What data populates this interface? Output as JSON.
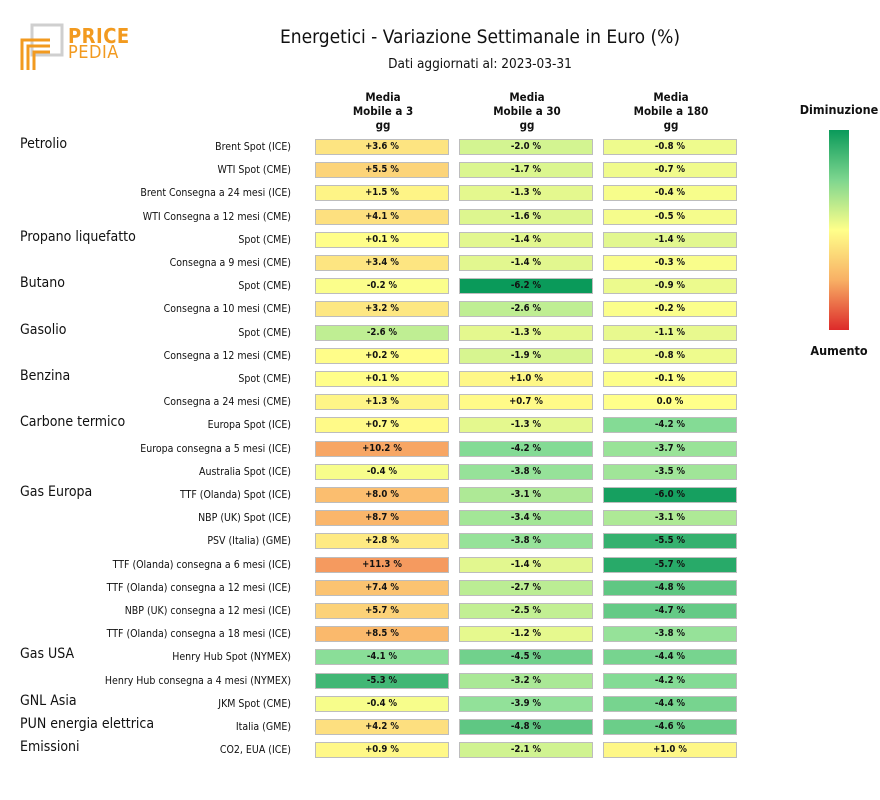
{
  "brand": {
    "line1": "PRICE",
    "line2": "PEDIA",
    "color": "#f29a1f"
  },
  "title": "Energetici - Variazione Settimanale in Euro (%)",
  "subtitle": "Dati aggiornati al: 2023-03-31",
  "columns": [
    "Media\nMobile a 3\ngg",
    "Media\nMobile a 30\ngg",
    "Media\nMobile a 180\ngg"
  ],
  "legend": {
    "top": "Diminuzione",
    "bottom": "Aumento"
  },
  "chart_data": {
    "type": "heatmap",
    "title": "Energetici - Variazione Settimanale in Euro (%)",
    "unit": "%",
    "columns": [
      "Media Mobile a 3 gg",
      "Media Mobile a 30 gg",
      "Media Mobile a 180 gg"
    ],
    "groups": [
      {
        "name": "Petrolio",
        "rows": [
          {
            "label": "Brent Spot (ICE)",
            "values": [
              3.6,
              -2.0,
              -0.8
            ]
          },
          {
            "label": "WTI Spot (CME)",
            "values": [
              5.5,
              -1.7,
              -0.7
            ]
          },
          {
            "label": "Brent Consegna a 24 mesi (ICE)",
            "values": [
              1.5,
              -1.3,
              -0.4
            ]
          },
          {
            "label": "WTI Consegna a 12 mesi (CME)",
            "values": [
              4.1,
              -1.6,
              -0.5
            ]
          }
        ]
      },
      {
        "name": "Propano liquefatto",
        "rows": [
          {
            "label": "Spot (CME)",
            "values": [
              0.1,
              -1.4,
              -1.4
            ]
          },
          {
            "label": "Consegna a 9 mesi (CME)",
            "values": [
              3.4,
              -1.4,
              -0.3
            ]
          }
        ]
      },
      {
        "name": "Butano",
        "rows": [
          {
            "label": "Spot (CME)",
            "values": [
              -0.2,
              -6.2,
              -0.9
            ]
          },
          {
            "label": "Consegna a 10 mesi (CME)",
            "values": [
              3.2,
              -2.6,
              -0.2
            ]
          }
        ]
      },
      {
        "name": "Gasolio",
        "rows": [
          {
            "label": "Spot (CME)",
            "values": [
              -2.6,
              -1.3,
              -1.1
            ]
          },
          {
            "label": "Consegna a 12 mesi (CME)",
            "values": [
              0.2,
              -1.9,
              -0.8
            ]
          }
        ]
      },
      {
        "name": "Benzina",
        "rows": [
          {
            "label": "Spot (CME)",
            "values": [
              0.1,
              1.0,
              -0.1
            ]
          },
          {
            "label": "Consegna a 24 mesi (CME)",
            "values": [
              1.3,
              0.7,
              0.0
            ]
          }
        ]
      },
      {
        "name": "Carbone termico",
        "rows": [
          {
            "label": "Europa Spot (ICE)",
            "values": [
              0.7,
              -1.3,
              -4.2
            ]
          },
          {
            "label": "Europa consegna a 5 mesi (ICE)",
            "values": [
              10.2,
              -4.2,
              -3.7
            ]
          },
          {
            "label": "Australia Spot (ICE)",
            "values": [
              -0.4,
              -3.8,
              -3.5
            ]
          }
        ]
      },
      {
        "name": "Gas Europa",
        "rows": [
          {
            "label": "TTF (Olanda) Spot (ICE)",
            "values": [
              8.0,
              -3.1,
              -6.0
            ]
          },
          {
            "label": "NBP (UK) Spot (ICE)",
            "values": [
              8.7,
              -3.4,
              -3.1
            ]
          },
          {
            "label": "PSV (Italia) (GME)",
            "values": [
              2.8,
              -3.8,
              -5.5
            ]
          },
          {
            "label": "TTF (Olanda) consegna a 6 mesi (ICE)",
            "values": [
              11.3,
              -1.4,
              -5.7
            ]
          },
          {
            "label": "TTF (Olanda) consegna a 12 mesi (ICE)",
            "values": [
              7.4,
              -2.7,
              -4.8
            ]
          },
          {
            "label": "NBP (UK) consegna a 12 mesi (ICE)",
            "values": [
              5.7,
              -2.5,
              -4.7
            ]
          },
          {
            "label": "TTF (Olanda) consegna a 18 mesi (ICE)",
            "values": [
              8.5,
              -1.2,
              -3.8
            ]
          }
        ]
      },
      {
        "name": "Gas USA",
        "rows": [
          {
            "label": "Henry Hub Spot (NYMEX)",
            "values": [
              -4.1,
              -4.5,
              -4.4
            ]
          },
          {
            "label": "Henry Hub consegna a 4 mesi (NYMEX)",
            "values": [
              -5.3,
              -3.2,
              -4.2
            ]
          }
        ]
      },
      {
        "name": "GNL Asia",
        "rows": [
          {
            "label": "JKM Spot (CME)",
            "values": [
              -0.4,
              -3.9,
              -4.4
            ]
          }
        ]
      },
      {
        "name": "PUN energia elettrica",
        "rows": [
          {
            "label": "Italia (GME)",
            "values": [
              4.2,
              -4.8,
              -4.6
            ]
          }
        ]
      },
      {
        "name": "Emissioni",
        "rows": [
          {
            "label": "CO2, EUA (ICE)",
            "values": [
              0.9,
              -2.1,
              1.0
            ]
          }
        ]
      }
    ]
  }
}
